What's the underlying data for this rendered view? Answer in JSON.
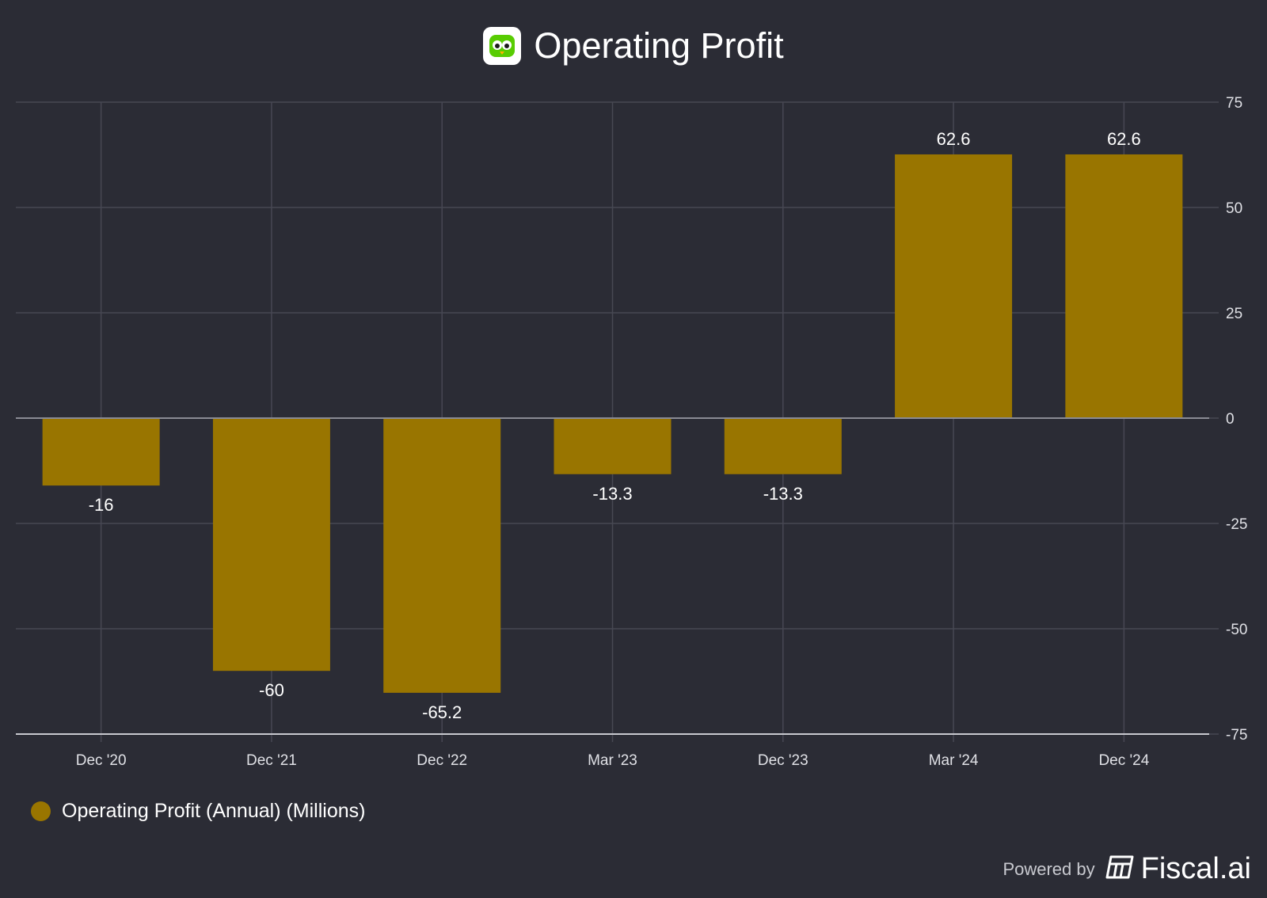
{
  "colors": {
    "background": "#2b2c35",
    "bar": "#997500",
    "grid": "#474853",
    "text": "#ffffff",
    "tick": "#e0e1e6"
  },
  "header": {
    "title": "Operating Profit",
    "logo_icon": "owl-mascot-icon"
  },
  "chart_data": {
    "type": "bar",
    "title": "Operating Profit",
    "categories": [
      "Dec '20",
      "Dec '21",
      "Dec '22",
      "Mar '23",
      "Dec '23",
      "Mar '24",
      "Dec '24"
    ],
    "values": [
      -16,
      -60,
      -65.2,
      -13.3,
      -13.3,
      62.6,
      62.6
    ],
    "value_labels": [
      "-16",
      "-60",
      "-65.2",
      "-13.3",
      "-13.3",
      "62.6",
      "62.6"
    ],
    "ylim": [
      -75,
      75
    ],
    "yticks": [
      75,
      50,
      25,
      0,
      -25,
      -50,
      -75
    ],
    "xlabel": "",
    "ylabel": "",
    "grid": true,
    "y_axis_side": "right",
    "legend_position": "bottom-left",
    "series": [
      {
        "name": "Operating Profit (Annual) (Millions)",
        "values": [
          -16,
          -60,
          -65.2,
          -13.3,
          -13.3,
          62.6,
          62.6
        ]
      }
    ]
  },
  "legend": {
    "label": "Operating Profit (Annual) (Millions)"
  },
  "footer": {
    "powered_by": "Powered by",
    "brand": "Fiscal.ai",
    "brand_icon": "fiscal-ledger-icon"
  }
}
